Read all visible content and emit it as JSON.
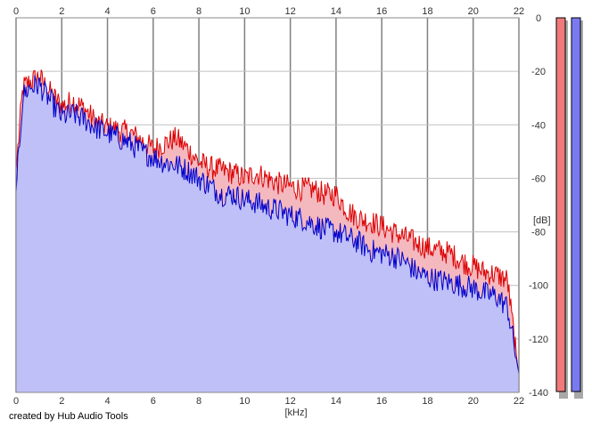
{
  "credit": "created by Hub Audio Tools",
  "chart_data": {
    "type": "area",
    "xlabel": "[kHz]",
    "ylabel": "[dB]",
    "xlim": [
      0,
      22
    ],
    "ylim": [
      -140,
      0
    ],
    "x_ticks": [
      0,
      2,
      4,
      6,
      8,
      10,
      12,
      14,
      16,
      18,
      20,
      22
    ],
    "x_tick_labels": [
      "0",
      "2",
      "4",
      "6",
      "8",
      "10",
      "12",
      "14",
      "16",
      "18",
      "20",
      "22"
    ],
    "y_ticks": [
      0,
      -20,
      -40,
      -60,
      -80,
      -100,
      -120,
      -140
    ],
    "y_tick_labels": [
      "0",
      "-20",
      "-40",
      "-60",
      "-80",
      "-100",
      "-120",
      "-140"
    ],
    "grid": true,
    "x_unit": "kHz",
    "y_unit": "dB",
    "series": [
      {
        "color": "#dd0000",
        "fill": "#f4b8bf",
        "x": [
          0,
          0.3,
          0.6,
          1,
          1.5,
          2,
          2.5,
          3,
          3.5,
          4,
          4.5,
          5,
          5.5,
          6,
          6.5,
          7,
          7.5,
          8,
          8.5,
          9,
          9.5,
          10,
          10.5,
          11,
          11.5,
          12,
          12.5,
          13,
          13.5,
          14,
          14.5,
          15,
          15.5,
          16,
          16.5,
          17,
          17.5,
          18,
          18.5,
          19,
          19.5,
          20,
          20.5,
          21,
          21.5,
          22
        ],
        "values": [
          -57,
          -26,
          -24,
          -22,
          -28,
          -33,
          -31,
          -34,
          -39,
          -41,
          -42,
          -43,
          -46,
          -49,
          -47,
          -45,
          -49,
          -54,
          -56,
          -57,
          -58,
          -60,
          -58,
          -60,
          -62,
          -63,
          -64,
          -64,
          -66,
          -66,
          -72,
          -75,
          -76,
          -78,
          -80,
          -82,
          -84,
          -86,
          -87,
          -88,
          -91,
          -93,
          -95,
          -96,
          -98,
          -134
        ]
      },
      {
        "color": "#0000cc",
        "fill": "#c0c0f8",
        "x": [
          0,
          0.3,
          0.6,
          1,
          1.5,
          2,
          2.5,
          3,
          3.5,
          4,
          4.5,
          5,
          5.5,
          6,
          6.5,
          7,
          7.5,
          8,
          8.5,
          9,
          9.5,
          10,
          10.5,
          11,
          11.5,
          12,
          12.5,
          13,
          13.5,
          14,
          14.5,
          15,
          15.5,
          16,
          16.5,
          17,
          17.5,
          18,
          18.5,
          19,
          19.5,
          20,
          20.5,
          21,
          21.5,
          22
        ],
        "values": [
          -65,
          -29,
          -26,
          -25,
          -31,
          -37,
          -36,
          -38,
          -41,
          -43,
          -45,
          -47,
          -50,
          -52,
          -54,
          -55,
          -57,
          -60,
          -63,
          -66,
          -66,
          -68,
          -69,
          -71,
          -72,
          -74,
          -75,
          -77,
          -79,
          -80,
          -82,
          -84,
          -87,
          -88,
          -89,
          -91,
          -95,
          -97,
          -98,
          -99,
          -100,
          -101,
          -103,
          -104,
          -108,
          -133
        ]
      }
    ],
    "level_meters": [
      {
        "color": "#f07a7a"
      },
      {
        "color": "#7a7af0"
      }
    ]
  }
}
